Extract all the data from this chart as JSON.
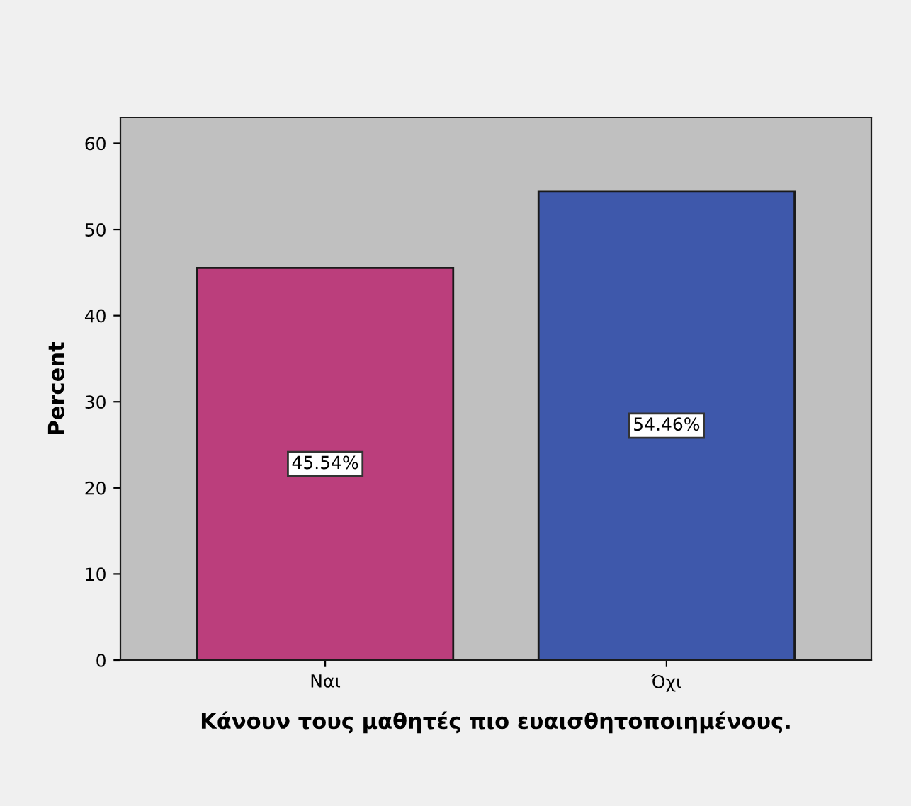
{
  "chart_data": {
    "type": "bar",
    "xlabel": "Κάνουν τους μαθητές πιο ευαισθητοποιημένους.",
    "ylabel": "Percent",
    "categories": [
      "Ναι",
      "Όχι"
    ],
    "values": [
      45.54,
      54.46
    ],
    "colors": [
      "#bb3e7c",
      "#3e58ab"
    ],
    "value_labels": [
      "45.54%",
      "54.46%"
    ],
    "ylim": [
      0,
      63
    ],
    "yticks": [
      0,
      10,
      20,
      30,
      40,
      50,
      60
    ],
    "grid": false
  }
}
